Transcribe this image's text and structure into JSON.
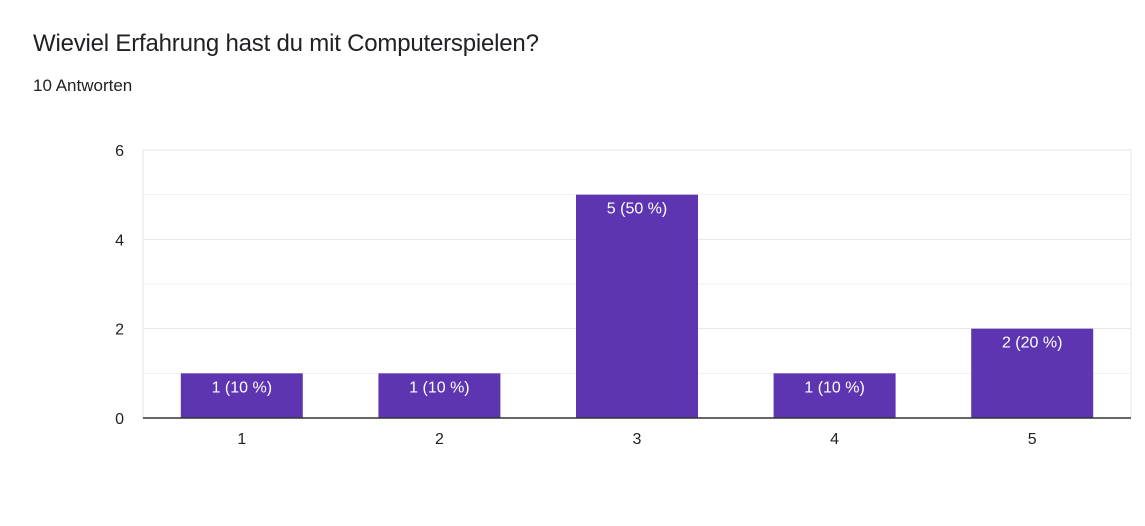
{
  "title": "Wieviel Erfahrung hast du mit Computerspielen?",
  "subtitle": "10 Antworten",
  "chart_data": {
    "type": "bar",
    "categories": [
      "1",
      "2",
      "3",
      "4",
      "5"
    ],
    "values": [
      1,
      1,
      5,
      1,
      2
    ],
    "data_labels": [
      "1 (10 %)",
      "1 (10 %)",
      "5 (50 %)",
      "1 (10 %)",
      "2 (20 %)"
    ],
    "ylim": [
      0,
      6
    ],
    "yticks": [
      0,
      2,
      4,
      6
    ],
    "xlabel": "",
    "ylabel": "",
    "grid": true,
    "colors": {
      "bar": "#5e35b1",
      "grid_major": "#e6e6e6",
      "grid_minor": "#f1f1f1",
      "axis": "#333333"
    }
  }
}
